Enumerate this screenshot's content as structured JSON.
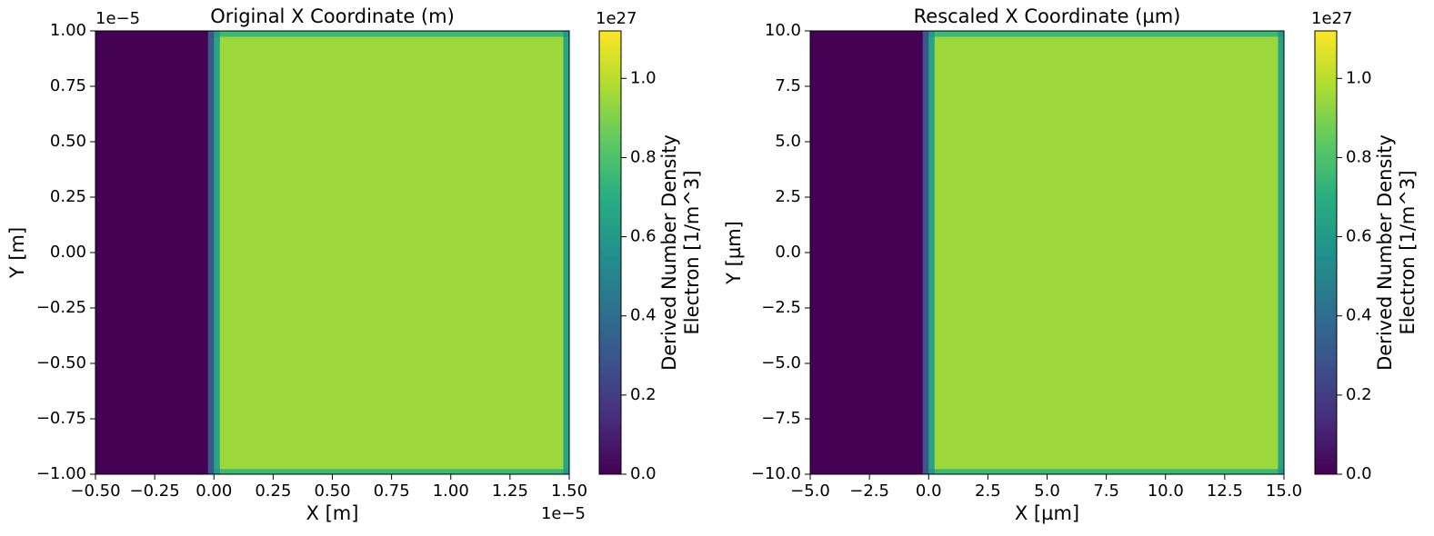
{
  "chart_data": [
    {
      "type": "heatmap",
      "title": "Original X Coordinate (m)",
      "xlabel": "X [m]",
      "ylabel": "Y [m]",
      "x_offset_label": "1e−5",
      "y_offset_label": "1e−5",
      "xlim": [
        -0.5,
        1.5
      ],
      "ylim": [
        -1.0,
        1.0
      ],
      "xticks": [
        {
          "value": -0.5,
          "label": "−0.50"
        },
        {
          "value": -0.25,
          "label": "−0.25"
        },
        {
          "value": 0,
          "label": "0.00"
        },
        {
          "value": 0.25,
          "label": "0.25"
        },
        {
          "value": 0.5,
          "label": "0.50"
        },
        {
          "value": 0.75,
          "label": "0.75"
        },
        {
          "value": 1.0,
          "label": "1.00"
        },
        {
          "value": 1.25,
          "label": "1.25"
        },
        {
          "value": 1.5,
          "label": "1.50"
        }
      ],
      "yticks": [
        {
          "value": -1.0,
          "label": "−1.00"
        },
        {
          "value": -0.75,
          "label": "−0.75"
        },
        {
          "value": -0.5,
          "label": "−0.50"
        },
        {
          "value": -0.25,
          "label": "−0.25"
        },
        {
          "value": 0,
          "label": "0.00"
        },
        {
          "value": 0.25,
          "label": "0.25"
        },
        {
          "value": 0.5,
          "label": "0.50"
        },
        {
          "value": 0.75,
          "label": "0.75"
        },
        {
          "value": 1.0,
          "label": "1.00"
        }
      ],
      "x_edges": [
        -0.5,
        -0.025,
        0,
        0.025,
        1.475,
        1.5
      ],
      "y_edges": [
        -1.0,
        -0.975,
        0.975,
        1.0
      ],
      "z": [
        [
          0,
          0.3,
          0.6,
          0.75,
          0.6
        ],
        [
          0,
          0.3,
          0.65,
          0.95,
          0.65
        ],
        [
          0,
          0.3,
          0.6,
          0.75,
          0.6
        ]
      ],
      "colormap": "viridis",
      "clim": [
        0,
        1.12
      ],
      "colorbar_label": [
        "Derived Number Density",
        "Electron [1/m^3]"
      ],
      "colorbar_offset_label": "1e27",
      "cticks": [
        {
          "value": 0,
          "label": "0.0"
        },
        {
          "value": 0.2,
          "label": "0.2"
        },
        {
          "value": 0.4,
          "label": "0.4"
        },
        {
          "value": 0.6,
          "label": "0.6"
        },
        {
          "value": 0.8,
          "label": "0.8"
        },
        {
          "value": 1.0,
          "label": "1.0"
        }
      ]
    },
    {
      "type": "heatmap",
      "title": "Rescaled X Coordinate (µm)",
      "xlabel": "X [µm]",
      "ylabel": "Y [µm]",
      "xlim": [
        -5.0,
        15.0
      ],
      "ylim": [
        -10.0,
        10.0
      ],
      "xticks": [
        {
          "value": -5,
          "label": "−5.0"
        },
        {
          "value": -2.5,
          "label": "−2.5"
        },
        {
          "value": 0,
          "label": "0.0"
        },
        {
          "value": 2.5,
          "label": "2.5"
        },
        {
          "value": 5,
          "label": "5.0"
        },
        {
          "value": 7.5,
          "label": "7.5"
        },
        {
          "value": 10,
          "label": "10.0"
        },
        {
          "value": 12.5,
          "label": "12.5"
        },
        {
          "value": 15,
          "label": "15.0"
        }
      ],
      "yticks": [
        {
          "value": -10,
          "label": "−10.0"
        },
        {
          "value": -7.5,
          "label": "−7.5"
        },
        {
          "value": -5,
          "label": "−5.0"
        },
        {
          "value": -2.5,
          "label": "−2.5"
        },
        {
          "value": 0,
          "label": "0.0"
        },
        {
          "value": 2.5,
          "label": "2.5"
        },
        {
          "value": 5,
          "label": "5.0"
        },
        {
          "value": 7.5,
          "label": "7.5"
        },
        {
          "value": 10,
          "label": "10.0"
        }
      ],
      "x_edges": [
        -5.0,
        -0.25,
        0,
        0.25,
        14.75,
        15.0
      ],
      "y_edges": [
        -10.0,
        -9.75,
        9.75,
        10.0
      ],
      "z": [
        [
          0,
          0.3,
          0.6,
          0.75,
          0.6
        ],
        [
          0,
          0.3,
          0.65,
          0.95,
          0.65
        ],
        [
          0,
          0.3,
          0.6,
          0.75,
          0.6
        ]
      ],
      "colormap": "viridis",
      "clim": [
        0,
        1.12
      ],
      "colorbar_label": [
        "Derived Number Density",
        "Electron [1/m^3]"
      ],
      "colorbar_offset_label": "1e27",
      "cticks": [
        {
          "value": 0,
          "label": "0.0"
        },
        {
          "value": 0.2,
          "label": "0.2"
        },
        {
          "value": 0.4,
          "label": "0.4"
        },
        {
          "value": 0.6,
          "label": "0.6"
        },
        {
          "value": 0.8,
          "label": "0.8"
        },
        {
          "value": 1.0,
          "label": "1.0"
        }
      ]
    }
  ]
}
